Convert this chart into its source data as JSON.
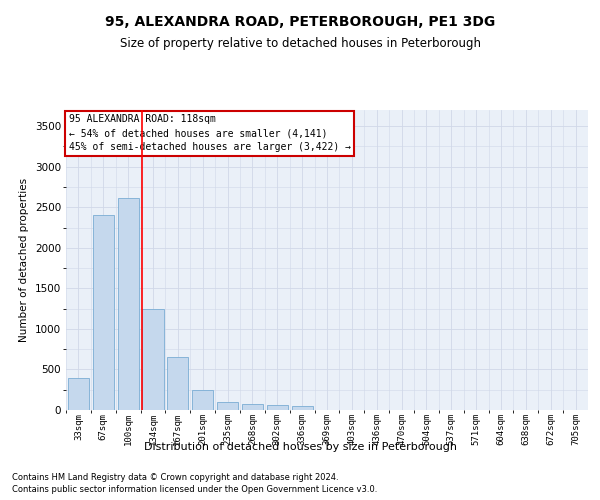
{
  "title": "95, ALEXANDRA ROAD, PETERBOROUGH, PE1 3DG",
  "subtitle": "Size of property relative to detached houses in Peterborough",
  "xlabel": "Distribution of detached houses by size in Peterborough",
  "ylabel": "Number of detached properties",
  "footnote1": "Contains HM Land Registry data © Crown copyright and database right 2024.",
  "footnote2": "Contains public sector information licensed under the Open Government Licence v3.0.",
  "annotation_line1": "95 ALEXANDRA ROAD: 118sqm",
  "annotation_line2": "← 54% of detached houses are smaller (4,141)",
  "annotation_line3": "45% of semi-detached houses are larger (3,422) →",
  "categories": [
    "33sqm",
    "67sqm",
    "100sqm",
    "134sqm",
    "167sqm",
    "201sqm",
    "235sqm",
    "268sqm",
    "302sqm",
    "336sqm",
    "369sqm",
    "403sqm",
    "436sqm",
    "470sqm",
    "504sqm",
    "537sqm",
    "571sqm",
    "604sqm",
    "638sqm",
    "672sqm",
    "705sqm"
  ],
  "values": [
    400,
    2400,
    2620,
    1250,
    650,
    250,
    100,
    75,
    60,
    50,
    0,
    0,
    0,
    0,
    0,
    0,
    0,
    0,
    0,
    0,
    0
  ],
  "bar_color": "#c5d8ed",
  "bar_edge_color": "#7aadd4",
  "red_line_x": 2.57,
  "ylim": [
    0,
    3700
  ],
  "yticks": [
    0,
    500,
    1000,
    1500,
    2000,
    2500,
    3000,
    3500
  ],
  "grid_color": "#d0d8e8",
  "bg_color": "#eaf0f8",
  "title_fontsize": 10,
  "subtitle_fontsize": 8.5,
  "annotation_box_color": "#ffffff",
  "annotation_box_edge": "#cc0000",
  "footnote_fontsize": 6.0
}
